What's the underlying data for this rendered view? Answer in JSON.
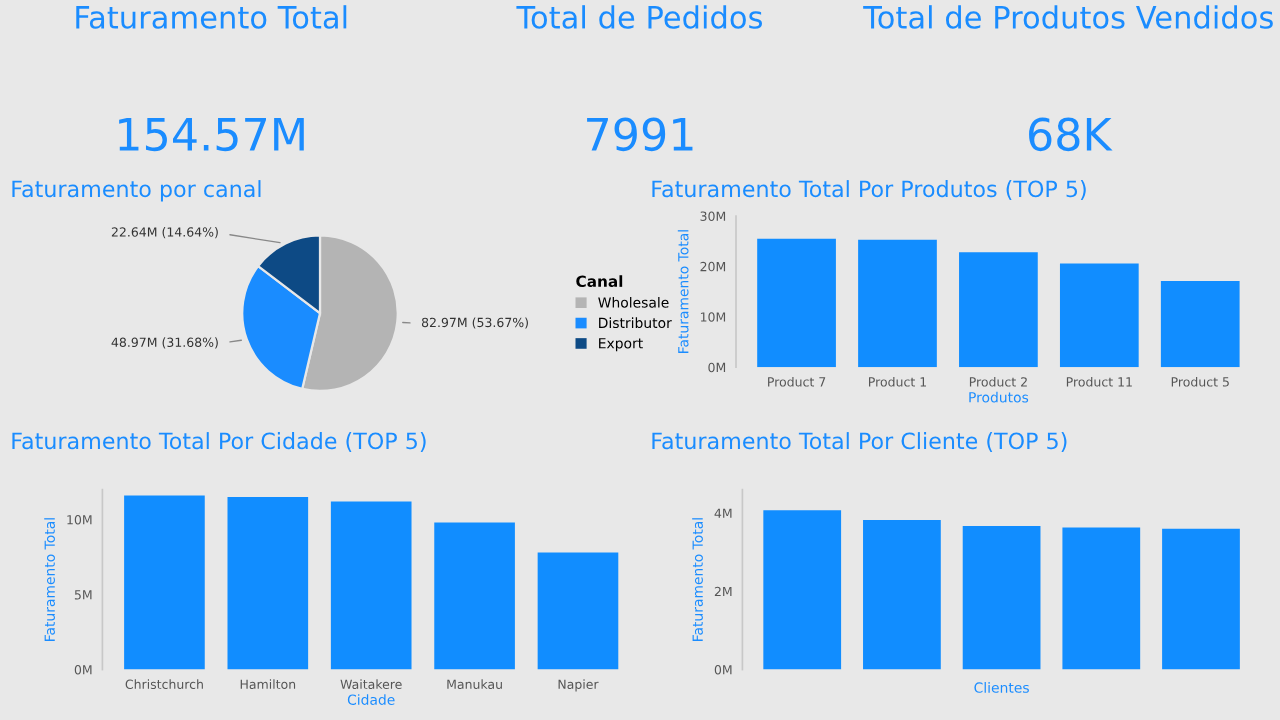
{
  "chart_data": [
    {
      "type": "other",
      "title": "Faturamento Total",
      "annotations": [
        "154.57M"
      ]
    },
    {
      "type": "other",
      "title": "Total de Pedidos",
      "annotations": [
        "7991"
      ]
    },
    {
      "type": "other",
      "title": "Total de Produtos Vendidos",
      "annotations": [
        "68K"
      ]
    },
    {
      "type": "pie",
      "title": "Faturamento por canal",
      "legend_title": "Canal",
      "legend": "right",
      "categories": [
        "Wholesale",
        "Distributor",
        "Export"
      ],
      "values": [
        53.67,
        31.68,
        14.64
      ],
      "colors": [
        "#b4b4b4",
        "#1a8cff",
        "#0d4a85"
      ],
      "value_labels": [
        "82.97M (53.67%)",
        "48.97M (31.68%)",
        "22.64M (14.64%)"
      ]
    },
    {
      "type": "bar",
      "title": "Faturamento Total Por Produtos (TOP 5)",
      "xlabel": "Produtos",
      "ylabel": "Faturamento Total",
      "categories": [
        "Product 7",
        "Product 1",
        "Product 2",
        "Product 11",
        "Product 5"
      ],
      "values": [
        25.5,
        25.3,
        22.8,
        20.6,
        17.1
      ],
      "color": "#118dff",
      "ylim": [
        0,
        30
      ],
      "yticks": [
        {
          "value": 0,
          "label": "0M"
        },
        {
          "value": 10,
          "label": "10M"
        },
        {
          "value": 20,
          "label": "20M"
        },
        {
          "value": 30,
          "label": "30M"
        }
      ]
    },
    {
      "type": "bar",
      "title": "Faturamento Total Por Cidade (TOP 5)",
      "xlabel": "Cidade",
      "ylabel": "Faturamento Total",
      "categories": [
        "Christchurch",
        "Hamilton",
        "Waitakere",
        "Manukau",
        "Napier"
      ],
      "values": [
        11.6,
        11.5,
        11.2,
        9.8,
        7.8
      ],
      "color": "#118dff",
      "ylim": [
        0,
        12
      ],
      "yticks": [
        {
          "value": 0,
          "label": "0M"
        },
        {
          "value": 5,
          "label": "5M"
        },
        {
          "value": 10,
          "label": "10M"
        }
      ]
    },
    {
      "type": "bar",
      "title": "Faturamento Total Por Cliente (TOP 5)",
      "xlabel": "Clientes",
      "ylabel": "Faturamento Total",
      "categories": [
        null,
        null,
        null,
        null,
        null
      ],
      "values": [
        4.07,
        3.82,
        3.67,
        3.63,
        3.6
      ],
      "color": "#118dff",
      "ylim": [
        0,
        4.6
      ],
      "yticks": [
        {
          "value": 0,
          "label": "0M"
        },
        {
          "value": 2,
          "label": "2M"
        },
        {
          "value": 4,
          "label": "4M"
        }
      ]
    }
  ]
}
